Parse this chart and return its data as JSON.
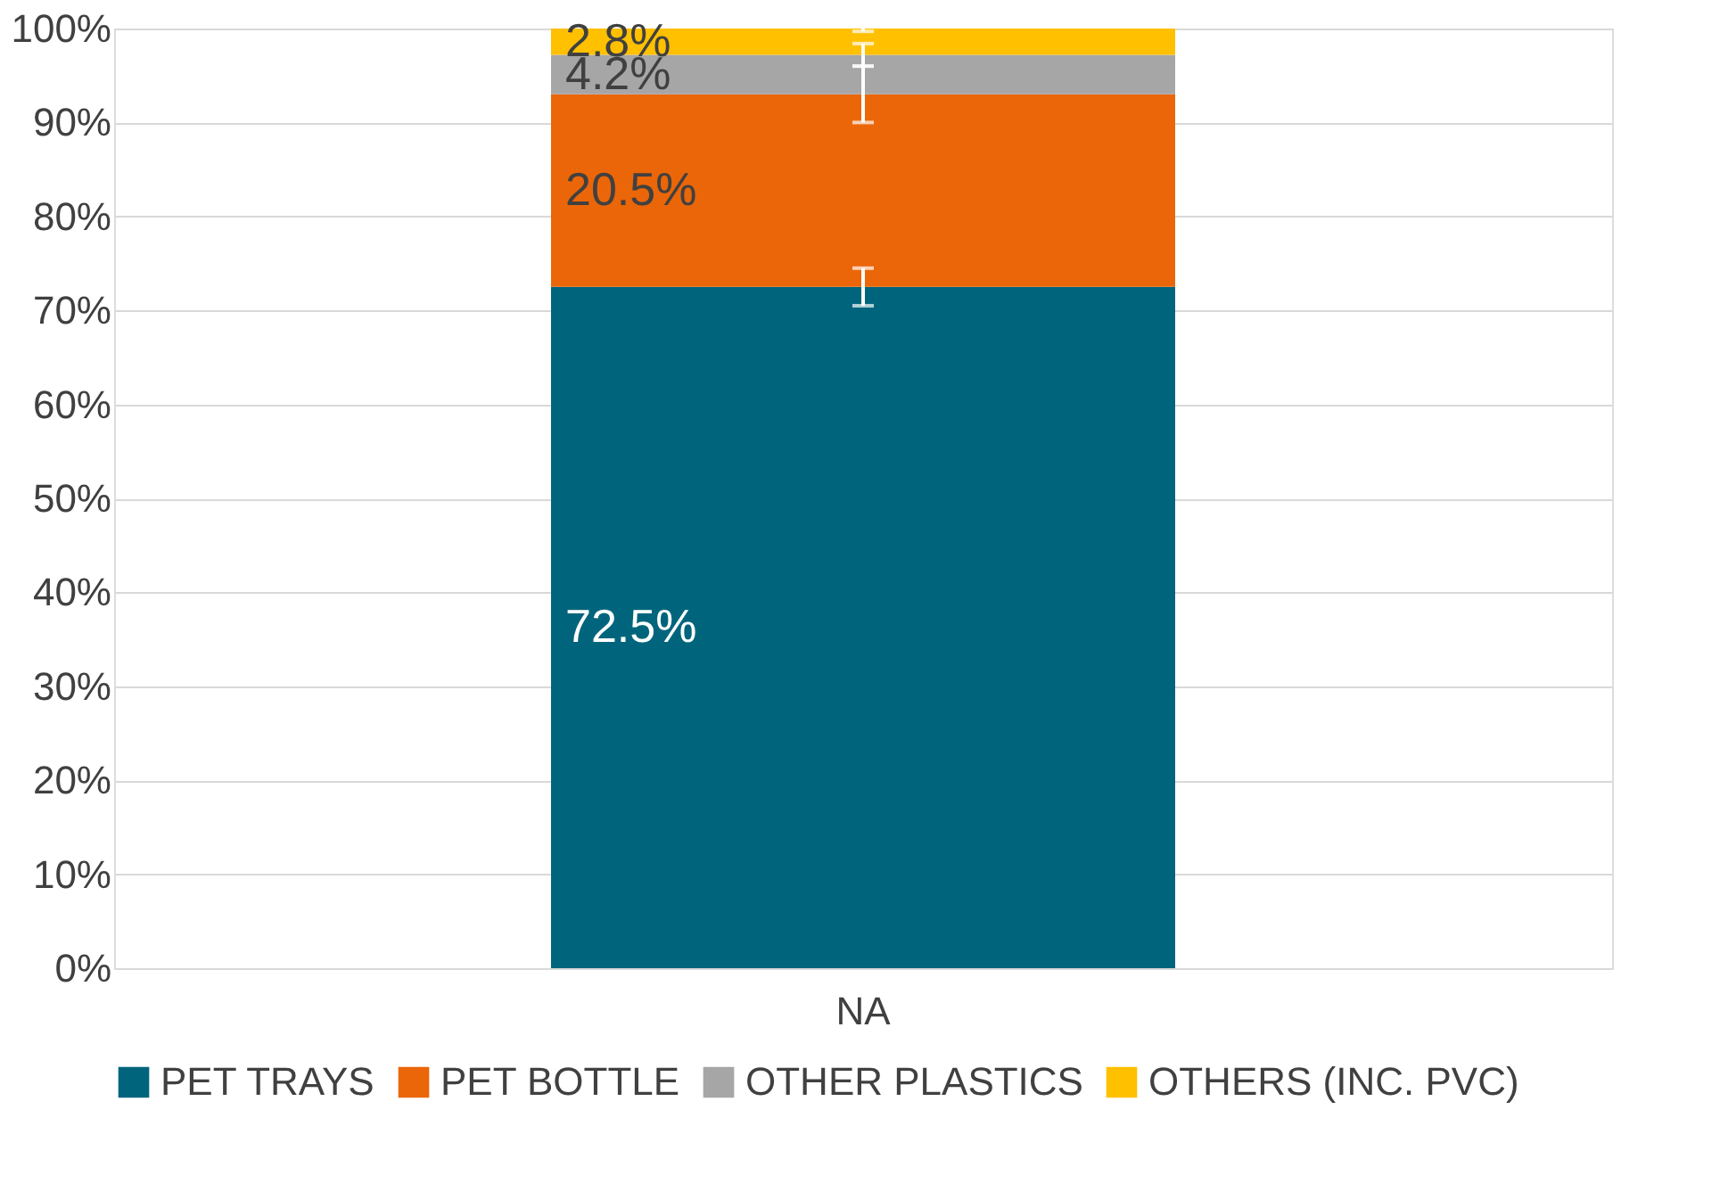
{
  "chart_data": {
    "type": "bar",
    "stacked": true,
    "categories": [
      "NA"
    ],
    "series": [
      {
        "name": "PET TRAYS",
        "color": "#00657c",
        "values": [
          72.5
        ],
        "errors": [
          2
        ],
        "value_labels": [
          "72.5%"
        ]
      },
      {
        "name": "PET BOTTLE",
        "color": "#eb6608",
        "values": [
          20.5
        ],
        "errors": [
          3
        ],
        "value_labels": [
          "20.5%"
        ]
      },
      {
        "name": "OTHER PLASTICS",
        "color": "#a6a6a6",
        "values": [
          4.2
        ],
        "errors": [
          1.2
        ],
        "value_labels": [
          "4.2%"
        ]
      },
      {
        "name": "OTHERS (INC. PVC)",
        "color": "#ffc000",
        "values": [
          2.8
        ],
        "errors": [
          0.3
        ],
        "value_labels": [
          "2.8%"
        ]
      }
    ],
    "ylim": [
      0,
      100
    ],
    "yticks": [
      {
        "value": 0,
        "label": "0%"
      },
      {
        "value": 10,
        "label": "10%"
      },
      {
        "value": 20,
        "label": "20%"
      },
      {
        "value": 30,
        "label": "30%"
      },
      {
        "value": 40,
        "label": "40%"
      },
      {
        "value": 50,
        "label": "50%"
      },
      {
        "value": 60,
        "label": "60%"
      },
      {
        "value": 70,
        "label": "70%"
      },
      {
        "value": 80,
        "label": "80%"
      },
      {
        "value": 90,
        "label": "90%"
      },
      {
        "value": 100,
        "label": "100%"
      }
    ],
    "grid": "y",
    "legend": "bottom"
  }
}
